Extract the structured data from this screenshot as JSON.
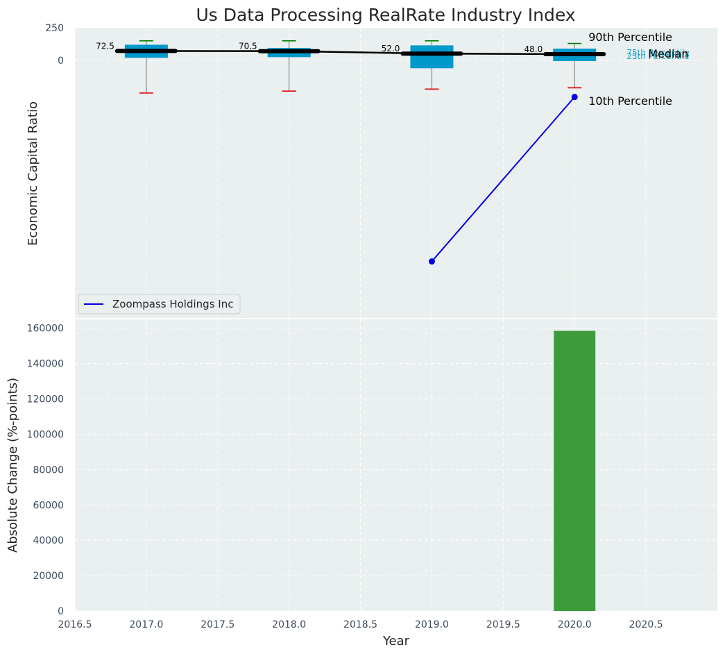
{
  "chart_data": [
    {
      "type": "box",
      "title": "Us Data Processing RealRate Industry Index",
      "ylabel": "Economic Capital Ratio",
      "xlim": [
        2016.5,
        2021.0
      ],
      "y_ticks": [
        0,
        250
      ],
      "categories": [
        2017,
        2018,
        2019,
        2020
      ],
      "boxes": [
        {
          "year": 2017,
          "p10": -250,
          "p25": 20,
          "median": 72.5,
          "p75": 120,
          "p90": 150
        },
        {
          "year": 2018,
          "p10": -235,
          "p25": 25,
          "median": 70.5,
          "p75": 95,
          "p90": 150
        },
        {
          "year": 2019,
          "p10": -220,
          "p25": -60,
          "median": 52.0,
          "p75": 115,
          "p90": 150
        },
        {
          "year": 2020,
          "p10": -210,
          "p25": -5,
          "median": 48.0,
          "p75": 90,
          "p90": 130
        }
      ],
      "median_labels": [
        "72.5",
        "70.5",
        "52.0",
        "48.0"
      ],
      "annotations": {
        "p90": "90th Percentile",
        "median": "Median",
        "p10": "10th Percentile",
        "p75": "75th Percentile",
        "p25": "25th Percentile"
      },
      "series": [
        {
          "name": "Zoompass Holdings Inc",
          "x": [
            2019,
            2020
          ],
          "y": [
            -1540,
            -280
          ]
        }
      ],
      "legend_position": "lower-left",
      "colors": {
        "box": "#0099cc",
        "median": "#000000",
        "p90_cap": "#008000",
        "p10_cap": "#e00000",
        "series": "#0000dd",
        "background": "#eaeff0"
      },
      "grid": true
    },
    {
      "type": "bar",
      "xlabel": "Year",
      "ylabel": "Absolute Change (%-points)",
      "xlim": [
        2016.5,
        2021.0
      ],
      "ylim": [
        0,
        165000
      ],
      "x_ticks": [
        "2016.5",
        "2017.0",
        "2017.5",
        "2018.0",
        "2018.5",
        "2019.0",
        "2019.5",
        "2020.0",
        "2020.5"
      ],
      "y_ticks": [
        "0",
        "20000",
        "40000",
        "60000",
        "80000",
        "100000",
        "120000",
        "140000",
        "160000"
      ],
      "categories": [
        2020
      ],
      "values": [
        158500
      ],
      "colors": {
        "bar": "#3c9c3c"
      },
      "grid": true
    }
  ]
}
